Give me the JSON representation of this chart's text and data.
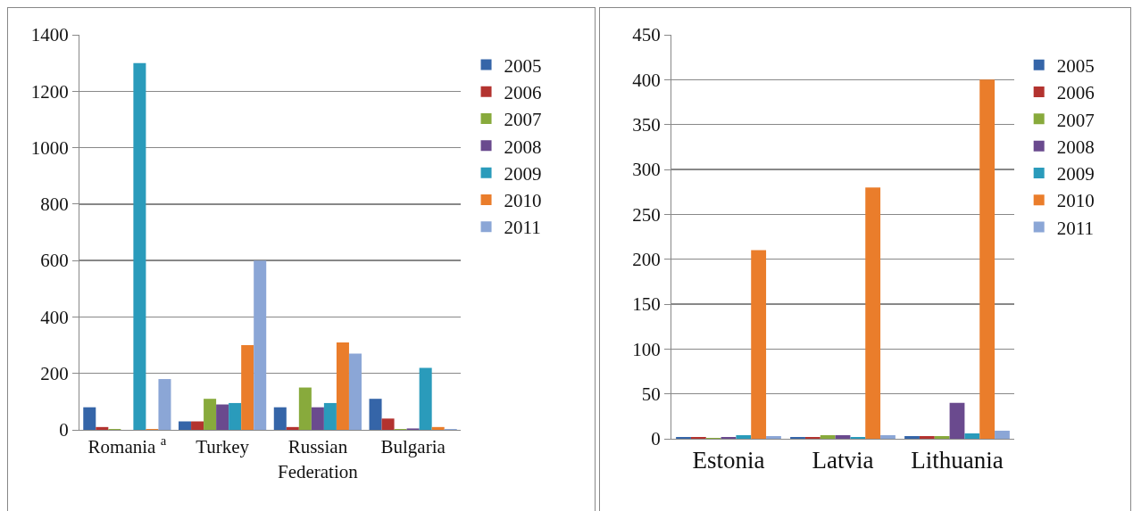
{
  "chart_data": [
    {
      "type": "bar",
      "categories": [
        "Romania $^{a}$",
        "Turkey",
        "Russian Federation",
        "Bulgaria"
      ],
      "ylim": [
        0,
        1400
      ],
      "yticks": [
        0,
        200,
        400,
        600,
        800,
        1000,
        1200,
        1400
      ],
      "grid": "y",
      "legend": "right",
      "series": [
        {
          "name": "2005",
          "color": "#3565a8",
          "values": [
            80,
            30,
            80,
            110
          ]
        },
        {
          "name": "2006",
          "color": "#b3332f",
          "values": [
            10,
            30,
            10,
            40
          ]
        },
        {
          "name": "2007",
          "color": "#88aa3c",
          "values": [
            3,
            110,
            150,
            3
          ]
        },
        {
          "name": "2008",
          "color": "#6a4a8e",
          "values": [
            0,
            90,
            80,
            5
          ]
        },
        {
          "name": "2009",
          "color": "#2a9bbb",
          "values": [
            1300,
            95,
            95,
            220
          ]
        },
        {
          "name": "2010",
          "color": "#ea7d2b",
          "values": [
            3,
            300,
            310,
            10
          ]
        },
        {
          "name": "2011",
          "color": "#8ba6d6",
          "values": [
            180,
            600,
            270,
            3
          ]
        }
      ]
    },
    {
      "type": "bar",
      "categories": [
        "Estonia",
        "Latvia",
        "Lithuania"
      ],
      "ylim": [
        0,
        450
      ],
      "yticks": [
        0,
        50,
        100,
        150,
        200,
        250,
        300,
        350,
        400,
        450
      ],
      "grid": "y",
      "legend": "right",
      "series": [
        {
          "name": "2005",
          "color": "#3565a8",
          "values": [
            2,
            2,
            3
          ]
        },
        {
          "name": "2006",
          "color": "#b3332f",
          "values": [
            2,
            2,
            3
          ]
        },
        {
          "name": "2007",
          "color": "#88aa3c",
          "values": [
            1,
            4,
            3
          ]
        },
        {
          "name": "2008",
          "color": "#6a4a8e",
          "values": [
            2,
            4,
            40
          ]
        },
        {
          "name": "2009",
          "color": "#2a9bbb",
          "values": [
            4,
            2,
            6
          ]
        },
        {
          "name": "2010",
          "color": "#ea7d2b",
          "values": [
            210,
            280,
            400
          ]
        },
        {
          "name": "2011",
          "color": "#8ba6d6",
          "values": [
            3,
            4,
            9
          ]
        }
      ]
    }
  ]
}
